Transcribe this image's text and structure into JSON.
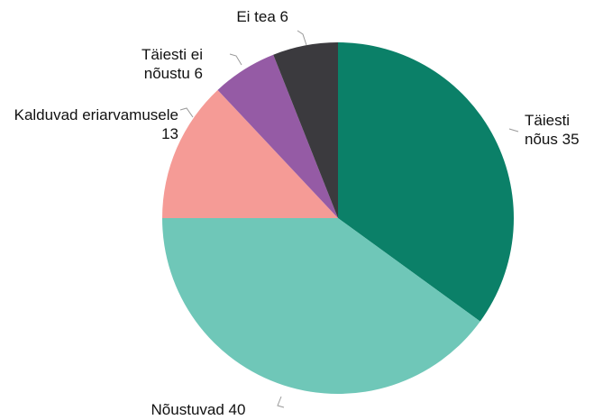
{
  "chart_data": {
    "type": "pie",
    "categories": [
      "Täiesti nõus",
      "Nõustuvad",
      "Kalduvad eriarvamusele",
      "Täiesti ei nõustu",
      "Ei tea"
    ],
    "values": [
      35,
      40,
      13,
      6,
      6
    ],
    "colors": [
      "#0b8068",
      "#6fc7b8",
      "#f59b96",
      "#955ba5",
      "#3b3a3e"
    ]
  }
}
